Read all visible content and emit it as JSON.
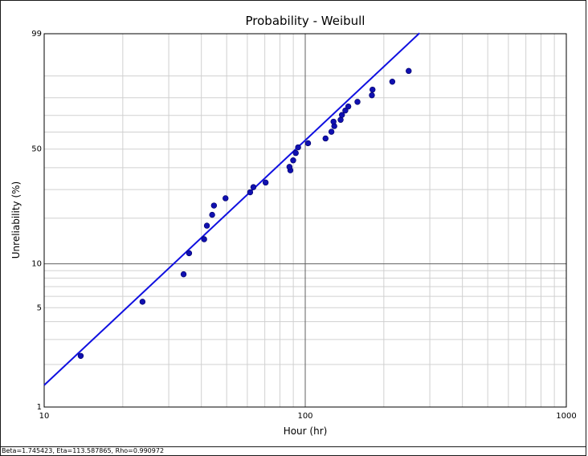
{
  "chart_data": {
    "type": "scatter",
    "title": "Probability - Weibull",
    "xlabel": "Hour (hr)",
    "ylabel": "Unreliability (%)",
    "x_scale": "log",
    "y_scale": "weibull",
    "xlim": [
      10,
      1000
    ],
    "ylim": [
      1,
      99
    ],
    "x_ticks": [
      10,
      100,
      1000
    ],
    "y_ticks": [
      1,
      5,
      10,
      50,
      99
    ],
    "grid": true,
    "colors": {
      "points": "#1010b0",
      "fit_line": "#1010e0",
      "grid_minor": "#d0d0d0",
      "grid_major": "#606060"
    },
    "series": [
      {
        "kind": "points",
        "points": [
          [
            13.8,
            2.3
          ],
          [
            23.8,
            5.5
          ],
          [
            34.2,
            8.5
          ],
          [
            35.9,
            11.8
          ],
          [
            41.0,
            14.6
          ],
          [
            42.0,
            17.9
          ],
          [
            44.0,
            21.0
          ],
          [
            44.7,
            24.0
          ],
          [
            49.5,
            26.6
          ],
          [
            61.5,
            28.9
          ],
          [
            63.3,
            31.0
          ],
          [
            70.5,
            33.0
          ],
          [
            87.7,
            38.7
          ],
          [
            87.0,
            40.4
          ],
          [
            89.9,
            43.8
          ],
          [
            92.0,
            47.8
          ],
          [
            93.9,
            51.0
          ],
          [
            102.5,
            53.4
          ],
          [
            119.6,
            56.2
          ],
          [
            126.0,
            60.2
          ],
          [
            129.2,
            63.6
          ],
          [
            128.3,
            66.3
          ],
          [
            136.6,
            67.4
          ],
          [
            138.2,
            70.3
          ],
          [
            142.4,
            72.9
          ],
          [
            146.2,
            75.2
          ],
          [
            158.5,
            77.8
          ],
          [
            180.0,
            81.3
          ],
          [
            181.0,
            84.1
          ],
          [
            215.5,
            87.7
          ],
          [
            249.0,
            91.8
          ]
        ]
      },
      {
        "kind": "fit",
        "beta": 1.745423,
        "eta": 113.587865,
        "x_range": [
          10,
          274
        ]
      }
    ]
  },
  "footer_text": "Beta=1.745423, Eta=113.587865, Rho=0.990972"
}
